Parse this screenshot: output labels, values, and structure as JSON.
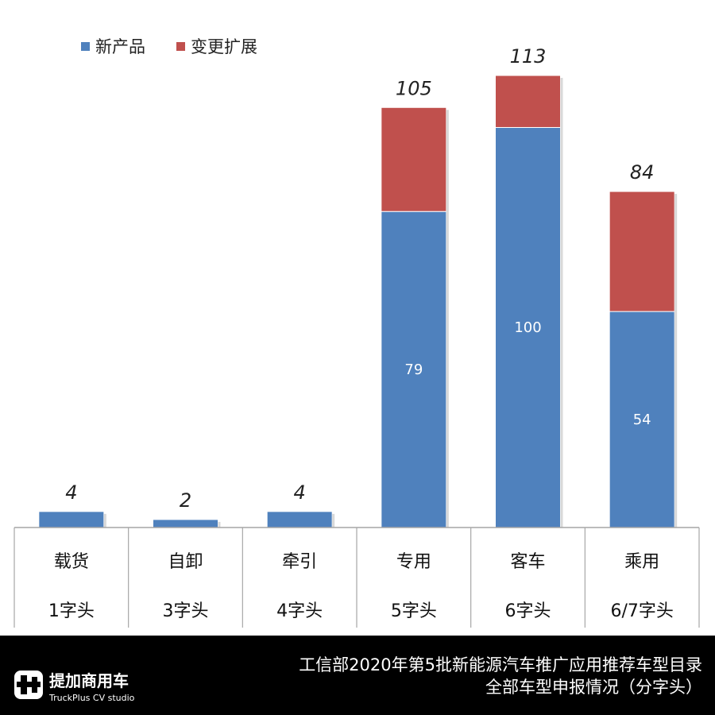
{
  "chart_data": {
    "type": "bar",
    "stacked": true,
    "categories": [
      "载货 1字头",
      "自卸 3字头",
      "牵引 4字头",
      "专用 5字头",
      "客车 6字头",
      "乘用 6/7字头"
    ],
    "category_rows": [
      [
        "载货",
        "1字头"
      ],
      [
        "自卸",
        "3字头"
      ],
      [
        "牵引",
        "4字头"
      ],
      [
        "专用",
        "5字头"
      ],
      [
        "客车",
        "6字头"
      ],
      [
        "乘用",
        "6/7字头"
      ]
    ],
    "series": [
      {
        "name": "新产品",
        "values": [
          4,
          2,
          4,
          79,
          100,
          54
        ],
        "color": "#4f81bd"
      },
      {
        "name": "变更扩展",
        "values": [
          0,
          0,
          0,
          26,
          13,
          30
        ],
        "color": "#c0504d"
      }
    ],
    "totals": [
      4,
      2,
      4,
      105,
      113,
      84
    ],
    "inner_labels": [
      "",
      "",
      "",
      "79",
      "100",
      "54"
    ],
    "legend_position": "top-left",
    "grid": false
  },
  "footer": {
    "title_line1": "工信部2020年第5批新能源汽车推广应用推荐车型目录",
    "title_line2": "全部车型申报情况（分字头）",
    "logo_text": "提加商用车",
    "logo_subtext": "TruckPlus CV studio"
  }
}
